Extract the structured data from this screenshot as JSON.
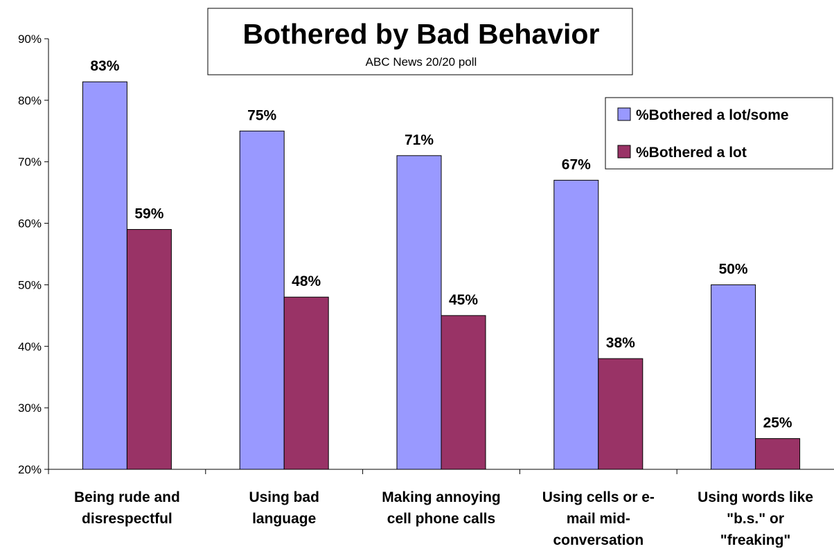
{
  "chart_data": {
    "type": "bar",
    "title": "Bothered by Bad Behavior",
    "subtitle": "ABC News 20/20 poll",
    "categories": [
      [
        "Being rude and",
        "disrespectful"
      ],
      [
        "Using bad",
        "language"
      ],
      [
        "Making annoying",
        "cell phone calls"
      ],
      [
        "Using cells or e-",
        "mail mid-",
        "conversation"
      ],
      [
        "Using words like",
        "\"b.s.\" or",
        "\"freaking\""
      ]
    ],
    "series": [
      {
        "name": "%Bothered a lot/some",
        "values": [
          83,
          75,
          71,
          67,
          50
        ],
        "labels": [
          "83%",
          "75%",
          "71%",
          "67%",
          "50%"
        ]
      },
      {
        "name": "%Bothered a lot",
        "values": [
          59,
          48,
          45,
          38,
          25
        ],
        "labels": [
          "59%",
          "48%",
          "45%",
          "38%",
          "25%"
        ]
      }
    ],
    "yticks": [
      "20%",
      "30%",
      "40%",
      "50%",
      "60%",
      "70%",
      "80%",
      "90%"
    ],
    "ylim": [
      20,
      90
    ],
    "legend_position": "top-right",
    "grid": false,
    "colors": [
      "#9999ff",
      "#993366"
    ]
  }
}
